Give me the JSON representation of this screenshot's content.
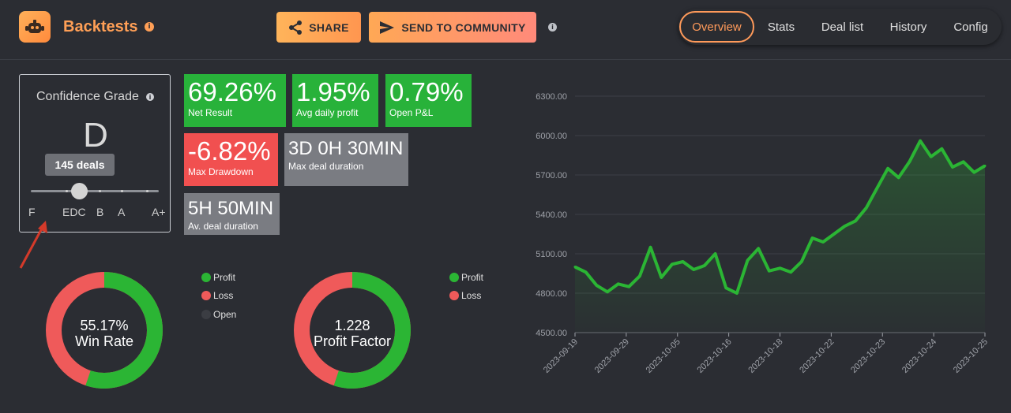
{
  "header": {
    "title": "Backtests",
    "title_info_icon": "i",
    "share_label": "SHARE",
    "send_label": "SEND TO COMMUNITY",
    "info_icon": "i",
    "tabs": [
      {
        "label": "Overview",
        "active": true
      },
      {
        "label": "Stats",
        "active": false
      },
      {
        "label": "Deal list",
        "active": false
      },
      {
        "label": "History",
        "active": false
      },
      {
        "label": "Config",
        "active": false
      }
    ]
  },
  "confidence": {
    "title": "Confidence Grade",
    "info_icon": "i",
    "grade": "D",
    "tooltip": "145 deals",
    "labels": [
      "F",
      "EDC",
      "B",
      "A",
      "A+"
    ]
  },
  "metrics": {
    "net_result": {
      "value": "69.26%",
      "label": "Net Result"
    },
    "avg_daily_profit": {
      "value": "1.95%",
      "label": "Avg daily profit"
    },
    "open_pnl": {
      "value": "0.79%",
      "label": "Open P&L"
    },
    "max_drawdown": {
      "value": "-6.82%",
      "label": "Max Drawdown"
    },
    "max_deal_duration": {
      "value": "3D 0H 30MIN",
      "label": "Max deal duration"
    },
    "avg_deal_duration": {
      "value": "5H 50MIN",
      "label": "Av. deal duration"
    }
  },
  "win_rate": {
    "value": "55.17%",
    "label": "Win Rate",
    "profit_fraction": 0.5517,
    "legend": [
      "Profit",
      "Loss",
      "Open"
    ]
  },
  "profit_factor": {
    "value": "1.228",
    "label": "Profit Factor",
    "profit_fraction": 0.5511,
    "legend": [
      "Profit",
      "Loss"
    ]
  },
  "colors": {
    "accent": "#ff9a5a",
    "profit": "#2bb534",
    "loss": "#ef5a5a",
    "open": "#3b3d43",
    "background": "#2b2d33"
  },
  "chart_data": {
    "type": "line",
    "y_ticks": [
      "6300.00",
      "6000.00",
      "5700.00",
      "5400.00",
      "5100.00",
      "4800.00",
      "4500.00"
    ],
    "ylim": [
      4500,
      6300
    ],
    "x_ticks": [
      "2023-09-19",
      "2023-09-29",
      "2023-10-05",
      "2023-10-16",
      "2023-10-18",
      "2023-10-22",
      "2023-10-23",
      "2023-10-24",
      "2023-10-25"
    ],
    "grid": "horizontal",
    "series": [
      {
        "color": "#2bb534",
        "values": [
          5000,
          4960,
          4860,
          4810,
          4870,
          4850,
          4930,
          5150,
          4920,
          5020,
          5040,
          4980,
          5010,
          5100,
          4840,
          4800,
          5050,
          5140,
          4970,
          4990,
          4960,
          5040,
          5220,
          5190,
          5250,
          5310,
          5350,
          5450,
          5600,
          5750,
          5680,
          5800,
          5960,
          5840,
          5900,
          5760,
          5800,
          5720,
          5770
        ]
      }
    ]
  }
}
